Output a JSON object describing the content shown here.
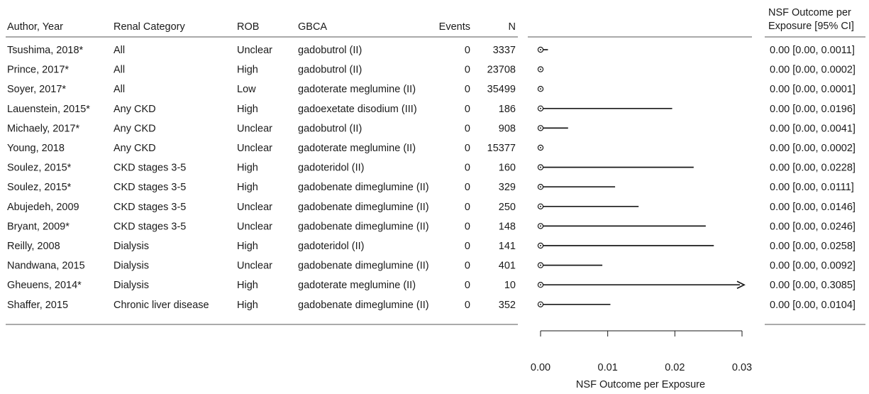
{
  "chart_data": {
    "type": "forest",
    "title": "",
    "columns": {
      "author": "Author, Year",
      "category": "Renal Category",
      "rob": "ROB",
      "gbca": "GBCA",
      "events": "Events",
      "n": "N",
      "outcome_line1": "NSF Outcome per",
      "outcome_line2": "Exposure [95% CI]"
    },
    "xlabel": "NSF Outcome per Exposure",
    "xlim": [
      0,
      0.03
    ],
    "xticks": [
      "0.00",
      "0.01",
      "0.02",
      "0.03"
    ],
    "rows": [
      {
        "author": "Tsushima, 2018*",
        "category": "All",
        "rob": "Unclear",
        "gbca": "gadobutrol (II)",
        "events": "0",
        "n": "3337",
        "estimate": 0,
        "lower": 0,
        "upper": 0.0011,
        "label": "0.00 [0.00, 0.0011]"
      },
      {
        "author": "Prince, 2017*",
        "category": "All",
        "rob": "High",
        "gbca": "gadobutrol (II)",
        "events": "0",
        "n": "23708",
        "estimate": 0,
        "lower": 0,
        "upper": 0.0002,
        "label": "0.00 [0.00, 0.0002]"
      },
      {
        "author": "Soyer, 2017*",
        "category": "All",
        "rob": "Low",
        "gbca": "gadoterate meglumine (II)",
        "events": "0",
        "n": "35499",
        "estimate": 0,
        "lower": 0,
        "upper": 0.0001,
        "label": "0.00 [0.00, 0.0001]"
      },
      {
        "author": "Lauenstein, 2015*",
        "category": "Any CKD",
        "rob": "High",
        "gbca": "gadoexetate disodium (III)",
        "events": "0",
        "n": "186",
        "estimate": 0,
        "lower": 0,
        "upper": 0.0196,
        "label": "0.00 [0.00, 0.0196]"
      },
      {
        "author": "Michaely, 2017*",
        "category": "Any CKD",
        "rob": "Unclear",
        "gbca": "gadobutrol (II)",
        "events": "0",
        "n": "908",
        "estimate": 0,
        "lower": 0,
        "upper": 0.0041,
        "label": "0.00 [0.00, 0.0041]"
      },
      {
        "author": "Young, 2018",
        "category": "Any CKD",
        "rob": "Unclear",
        "gbca": "gadoterate meglumine (II)",
        "events": "0",
        "n": "15377",
        "estimate": 0,
        "lower": 0,
        "upper": 0.0002,
        "label": "0.00 [0.00, 0.0002]"
      },
      {
        "author": "Soulez, 2015*",
        "category": "CKD stages 3-5",
        "rob": "High",
        "gbca": "gadoteridol (II)",
        "events": "0",
        "n": "160",
        "estimate": 0,
        "lower": 0,
        "upper": 0.0228,
        "label": "0.00 [0.00, 0.0228]"
      },
      {
        "author": "Soulez, 2015*",
        "category": "CKD stages 3-5",
        "rob": "High",
        "gbca": "gadobenate dimeglumine (II)",
        "events": "0",
        "n": "329",
        "estimate": 0,
        "lower": 0,
        "upper": 0.0111,
        "label": "0.00 [0.00, 0.0111]"
      },
      {
        "author": "Abujedeh, 2009",
        "category": "CKD stages 3-5",
        "rob": "Unclear",
        "gbca": "gadobenate dimeglumine (II)",
        "events": "0",
        "n": "250",
        "estimate": 0,
        "lower": 0,
        "upper": 0.0146,
        "label": "0.00 [0.00, 0.0146]"
      },
      {
        "author": "Bryant, 2009*",
        "category": "CKD stages 3-5",
        "rob": "Unclear",
        "gbca": "gadobenate dimeglumine (II)",
        "events": "0",
        "n": "148",
        "estimate": 0,
        "lower": 0,
        "upper": 0.0246,
        "label": "0.00 [0.00, 0.0246]"
      },
      {
        "author": "Reilly, 2008",
        "category": "Dialysis",
        "rob": "High",
        "gbca": "gadoteridol (II)",
        "events": "0",
        "n": "141",
        "estimate": 0,
        "lower": 0,
        "upper": 0.0258,
        "label": "0.00 [0.00, 0.0258]"
      },
      {
        "author": "Nandwana, 2015",
        "category": "Dialysis",
        "rob": "Unclear",
        "gbca": "gadobenate dimeglumine (II)",
        "events": "0",
        "n": "401",
        "estimate": 0,
        "lower": 0,
        "upper": 0.0092,
        "label": "0.00 [0.00, 0.0092]"
      },
      {
        "author": "Gheuens, 2014*",
        "category": "Dialysis",
        "rob": "High",
        "gbca": "gadoterate meglumine (II)",
        "events": "0",
        "n": "10",
        "estimate": 0,
        "lower": 0,
        "upper": 0.3085,
        "label": "0.00 [0.00, 0.3085]"
      },
      {
        "author": "Shaffer, 2015",
        "category": "Chronic liver disease",
        "rob": "High",
        "gbca": "gadobenate dimeglumine (II)",
        "events": "0",
        "n": "352",
        "estimate": 0,
        "lower": 0,
        "upper": 0.0104,
        "label": "0.00 [0.00, 0.0104]"
      }
    ],
    "colors": {
      "text": "#1a1a1a",
      "line": "#1a1a1a",
      "rule": "#555555"
    }
  }
}
